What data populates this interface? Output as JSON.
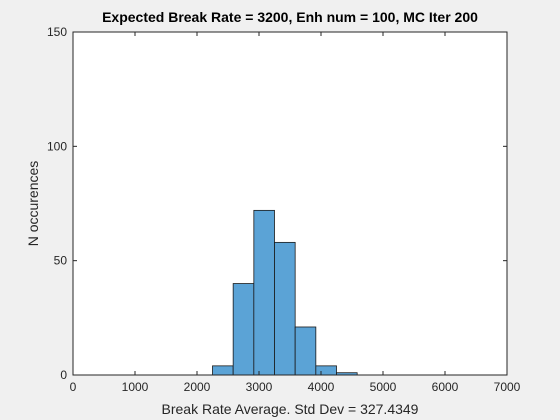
{
  "chart_data": {
    "type": "bar",
    "title": "Expected Break Rate = 3200, Enh num = 100, MC Iter 200",
    "xlabel": "Break Rate Average. Std Dev = 327.4349",
    "ylabel": "N occurences",
    "xlim": [
      0,
      7000
    ],
    "ylim": [
      0,
      150
    ],
    "xticks": [
      0,
      1000,
      2000,
      3000,
      4000,
      5000,
      6000,
      7000
    ],
    "yticks": [
      0,
      50,
      100,
      150
    ],
    "bin_edges": [
      2250,
      2583.3,
      2916.7,
      3250,
      3583.3,
      3916.7,
      4250,
      4583.3
    ],
    "values": [
      4,
      40,
      72,
      58,
      21,
      4,
      1
    ],
    "bar_color": "#5ba3d6",
    "bar_edge_color": "#1a1a1a",
    "grid": false
  }
}
